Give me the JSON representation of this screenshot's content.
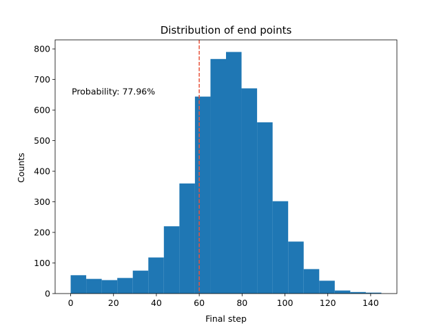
{
  "chart_data": {
    "type": "bar",
    "title": "Distribution of end points",
    "xlabel": "Final step",
    "ylabel": "Counts",
    "bin_edges": [
      0,
      7.25,
      14.5,
      21.75,
      29,
      36.25,
      43.5,
      50.75,
      58,
      65.25,
      72.5,
      79.75,
      87,
      94.25,
      101.5,
      108.75,
      116,
      123.25,
      130.5,
      137.75,
      145
    ],
    "values": [
      60,
      48,
      44,
      51,
      75,
      118,
      220,
      360,
      644,
      767,
      790,
      671,
      560,
      302,
      170,
      80,
      42,
      10,
      5,
      3
    ],
    "xlim": [
      -7.25,
      152.25
    ],
    "ylim": [
      0,
      829.5
    ],
    "xticks": [
      0,
      20,
      40,
      60,
      80,
      100,
      120,
      140
    ],
    "yticks": [
      0,
      100,
      200,
      300,
      400,
      500,
      600,
      700,
      800
    ],
    "vline": {
      "x": 60,
      "color": "#e8523b",
      "style": "dashed"
    },
    "annotation": {
      "text": "Probability: 77.96%",
      "x": 0.5,
      "y": 660
    },
    "bar_color": "#1f77b4",
    "grid": false,
    "legend": "none"
  }
}
